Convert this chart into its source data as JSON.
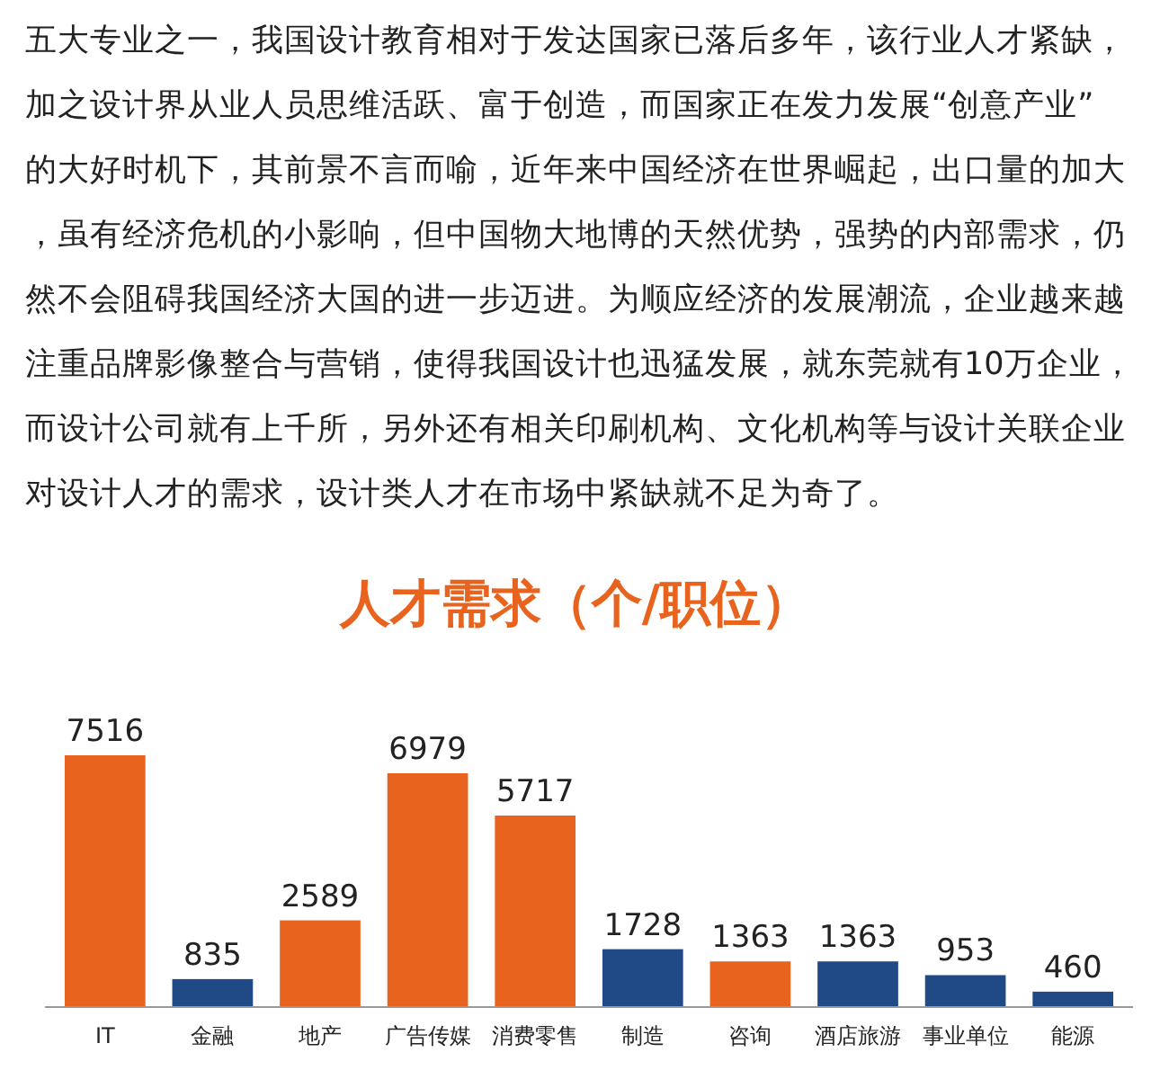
{
  "chart_data": {
    "type": "bar",
    "title": "人才需求（个/职位）",
    "annotations": [
      "五大专业之一，我国设计教育相对于发达国家已落后多年，该行业人才紧缺，加之设计界从业人员思维活跃、富于创造，而国家正在发力发展“创意产业”的大好时机下，其前景不言而喻，近年来中国经济在世界崛起，出口量的加大，虽有经济危机的小影响，但中国物大地博的天然优势，强势的内部需求，仍然不会阻碍我国经济大国的进一步迈进。为顺应经济的发展潮流，企业越来越注重品牌影像整合与营销，使得我国设计也迅猛发展，就东莞就有10万企业，而设计公司就有上千所，另外还有相关印刷机构、文化机构等与设计关联企业对设计人才的需求，设计类人才在市场中紧缺就不足为奇了。"
    ],
    "categories": [
      "IT",
      "金融",
      "地产",
      "广告传媒",
      "消费零售",
      "制造",
      "咨询",
      "酒店旅游",
      "事业单位",
      "能源"
    ],
    "values": [
      7516,
      835,
      2589,
      6979,
      5717,
      1728,
      1363,
      1363,
      953,
      460
    ],
    "colors": [
      "#e8641e",
      "#1f4a85",
      "#e8641e",
      "#e8641e",
      "#e8641e",
      "#1f4a85",
      "#e8641e",
      "#1f4a85",
      "#1f4a85",
      "#1f4a85"
    ],
    "data_labels": true
  }
}
